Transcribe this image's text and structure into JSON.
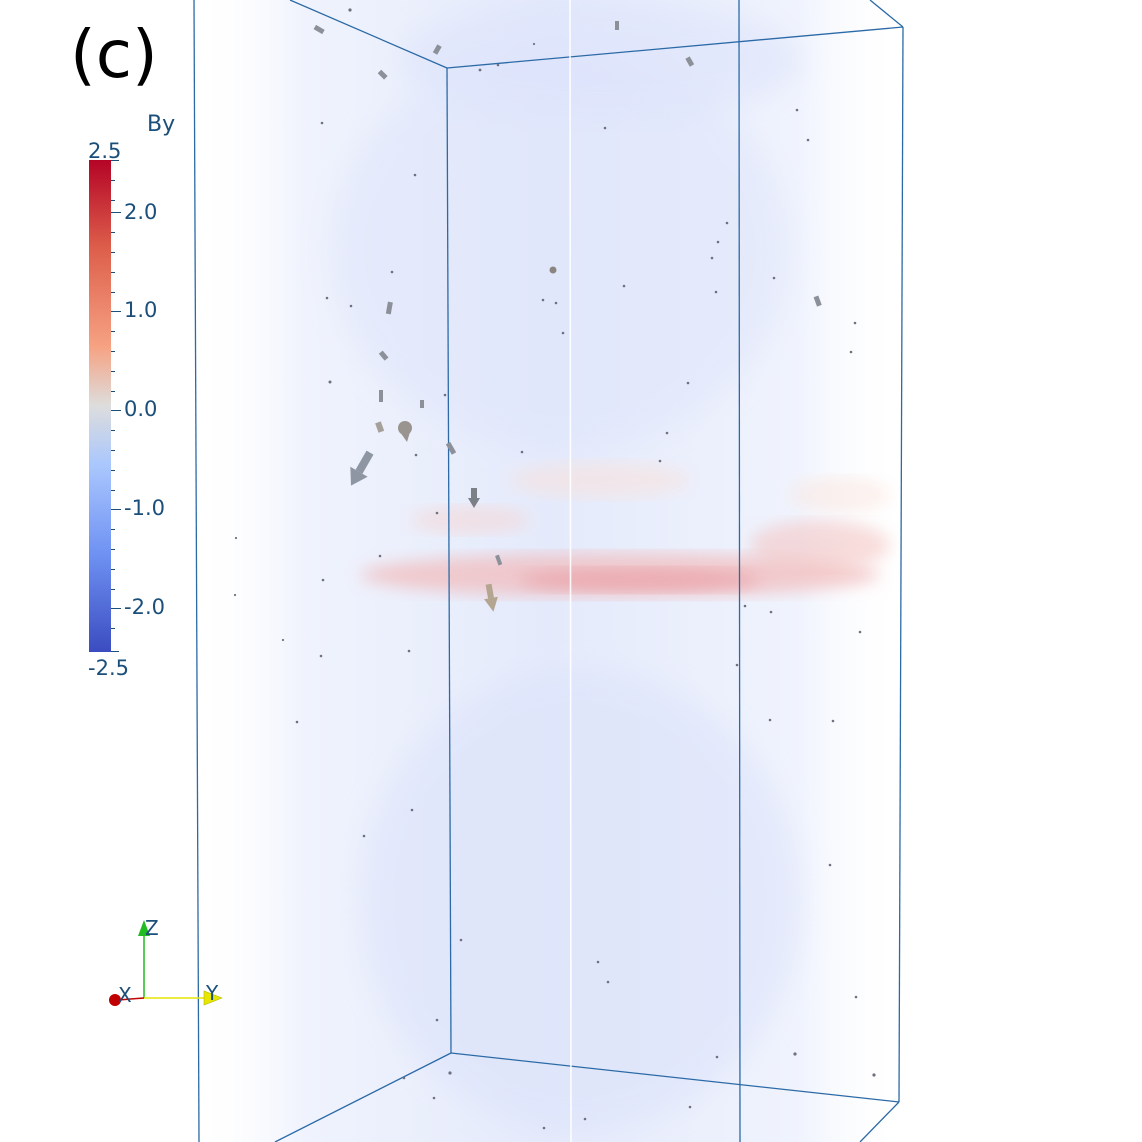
{
  "panel_label": "(c)",
  "colorbar": {
    "title": "By",
    "max_label": "2.5",
    "min_label": "-2.5",
    "ticks": [
      "2.0",
      "1.0",
      "0.0",
      "-1.0",
      "-2.0"
    ]
  },
  "orientation_axes": {
    "x_label": "X",
    "y_label": "Y",
    "z_label": "Z"
  },
  "colors": {
    "box_edge": "#2b6aa6",
    "colormap_high": "#b40426",
    "colormap_mid": "#dddddd",
    "colormap_low": "#3b4cc0",
    "label_text": "#1b4f7a",
    "axis_x": "#c00000",
    "axis_y": "#e6e600",
    "axis_z": "#22bb22"
  },
  "icons": {
    "arrow_glyph": "arrow-glyph-icon"
  }
}
